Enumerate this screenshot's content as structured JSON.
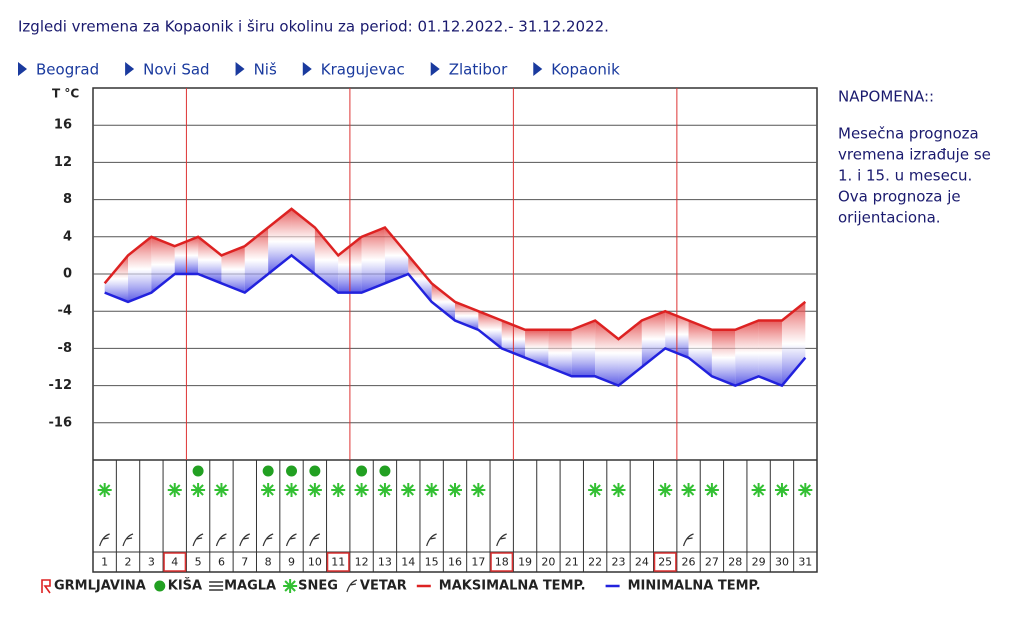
{
  "header": {
    "title": "Izgledi vremena za Kopaonik i širu okolinu za period: 01.12.2022.- 31.12.2022."
  },
  "nav": [
    "Beograd",
    "Novi Sad",
    "Niš",
    "Kragujevac",
    "Zlatibor",
    "Kopaonik"
  ],
  "note": {
    "title": "NAPOMENA::",
    "lines": [
      "Mesečna prognoza",
      "vremena izrađuje se",
      "1. i 15. u mesecu.",
      "Ova prognoza je",
      "orijentaciona."
    ]
  },
  "chart_data": {
    "type": "line",
    "y_label": "T °C",
    "categories": [
      "1",
      "2",
      "3",
      "4",
      "5",
      "6",
      "7",
      "8",
      "9",
      "10",
      "11",
      "12",
      "13",
      "14",
      "15",
      "16",
      "17",
      "18",
      "19",
      "20",
      "21",
      "22",
      "23",
      "24",
      "25",
      "26",
      "27",
      "28",
      "29",
      "30",
      "31"
    ],
    "marked": [
      false,
      false,
      false,
      true,
      false,
      false,
      false,
      false,
      false,
      false,
      true,
      false,
      false,
      false,
      false,
      false,
      false,
      true,
      false,
      false,
      false,
      false,
      false,
      false,
      true,
      false,
      false,
      false,
      false,
      false,
      false
    ],
    "ylim": [
      -20,
      20
    ],
    "yticks": [
      16,
      12,
      8,
      4,
      0,
      -4,
      -8,
      -12,
      -16
    ],
    "grid": true,
    "series": [
      {
        "name": "MAKSIMALNA TEMP.",
        "color": "#dd2222",
        "values": [
          -1,
          2,
          4,
          3,
          4,
          2,
          3,
          5,
          7,
          5,
          2,
          4,
          5,
          2,
          -1,
          -3,
          -4,
          -5,
          -6,
          -6,
          -6,
          -5,
          -7,
          -5,
          -4,
          -5,
          -6,
          -6,
          -5,
          -5,
          -3
        ]
      },
      {
        "name": "MINIMALNA TEMP.",
        "color": "#2222dd",
        "values": [
          -2,
          -3,
          -2,
          0,
          0,
          -1,
          -2,
          0,
          2,
          0,
          -2,
          -2,
          -1,
          0,
          -3,
          -5,
          -6,
          -8,
          -9,
          -10,
          -11,
          -11,
          -12,
          -10,
          -8,
          -9,
          -11,
          -12,
          -11,
          -12,
          -9
        ]
      }
    ],
    "events": [
      {
        "name": "GRMLJAVINA",
        "kind": "thunder",
        "color": "#dd2222",
        "days": [
          false,
          false,
          false,
          false,
          false,
          false,
          false,
          false,
          false,
          false,
          false,
          false,
          false,
          false,
          false,
          false,
          false,
          false,
          false,
          false,
          false,
          false,
          false,
          false,
          false,
          false,
          false,
          false,
          false,
          false,
          false
        ]
      },
      {
        "name": "KIŠA",
        "kind": "rain",
        "color": "#22a022",
        "days": [
          false,
          false,
          false,
          false,
          true,
          false,
          false,
          true,
          true,
          true,
          false,
          true,
          true,
          false,
          false,
          false,
          false,
          false,
          false,
          false,
          false,
          false,
          false,
          false,
          false,
          false,
          false,
          false,
          false,
          false,
          false
        ]
      },
      {
        "name": "MAGLA",
        "kind": "fog",
        "color": "#555555",
        "days": [
          false,
          false,
          false,
          false,
          false,
          false,
          false,
          false,
          false,
          false,
          false,
          false,
          false,
          false,
          false,
          false,
          false,
          false,
          false,
          false,
          false,
          false,
          false,
          false,
          false,
          false,
          false,
          false,
          false,
          false,
          false
        ]
      },
      {
        "name": "SNEG",
        "kind": "snow",
        "color": "#33c033",
        "days": [
          true,
          false,
          false,
          true,
          true,
          true,
          false,
          true,
          true,
          true,
          true,
          true,
          true,
          true,
          true,
          true,
          true,
          false,
          false,
          false,
          false,
          true,
          true,
          false,
          true,
          true,
          true,
          false,
          true,
          true,
          true
        ]
      },
      {
        "name": "VETAR",
        "kind": "wind",
        "color": "#333333",
        "days": [
          true,
          true,
          false,
          false,
          true,
          true,
          true,
          true,
          true,
          true,
          false,
          false,
          false,
          false,
          true,
          false,
          false,
          true,
          false,
          false,
          false,
          false,
          false,
          false,
          false,
          true,
          false,
          false,
          false,
          false,
          false
        ]
      }
    ]
  }
}
